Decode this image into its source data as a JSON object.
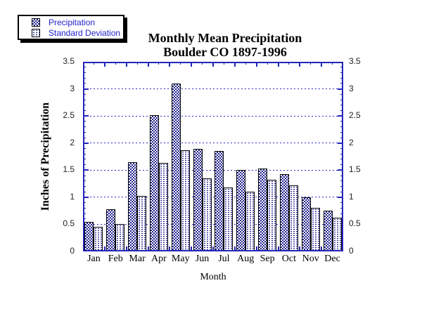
{
  "chart_data": {
    "type": "bar",
    "title": "Monthly Mean Precipitation",
    "subtitle": "Boulder CO 1897-1996",
    "xlabel": "Month",
    "ylabel": "Inches of Precipitation",
    "categories": [
      "Jan",
      "Feb",
      "Mar",
      "Apr",
      "May",
      "Jun",
      "Jul",
      "Aug",
      "Sep",
      "Oct",
      "Nov",
      "Dec"
    ],
    "series": [
      {
        "name": "Precipitation",
        "pattern": "checker",
        "values": [
          0.55,
          0.78,
          1.65,
          2.51,
          3.1,
          1.89,
          1.85,
          1.5,
          1.53,
          1.43,
          1.0,
          0.75
        ]
      },
      {
        "name": "Standard Deviation",
        "pattern": "dots",
        "values": [
          0.45,
          0.5,
          1.02,
          1.63,
          1.87,
          1.35,
          1.18,
          1.1,
          1.32,
          1.22,
          0.8,
          0.62
        ]
      }
    ],
    "ylim": [
      0,
      3.5
    ],
    "ytick_labels": [
      {
        "v": 0,
        "label": "0"
      },
      {
        "v": 0.5,
        "label": "0.5"
      },
      {
        "v": 1,
        "label": "1"
      },
      {
        "v": 1.5,
        "label": "1.5"
      },
      {
        "v": 2,
        "label": "2"
      },
      {
        "v": 2.5,
        "label": "2.5"
      },
      {
        "v": 3,
        "label": "3"
      },
      {
        "v": 3.5,
        "label": "3.5"
      }
    ],
    "grid": {
      "horizontal_step": 0.5,
      "style": "dotted"
    },
    "legend": {
      "position": "top-left",
      "items": [
        "Precipitation",
        "Standard Deviation"
      ]
    },
    "axes_on_both_sides": true,
    "colors": {
      "pattern_blue": "#24248f",
      "axis_blue": "#2424bb",
      "grid_blue": "#2a2acc",
      "legend_text": "#2222cc",
      "bar_outline": "#000000",
      "text": "#000000",
      "background": "#ffffff"
    }
  }
}
